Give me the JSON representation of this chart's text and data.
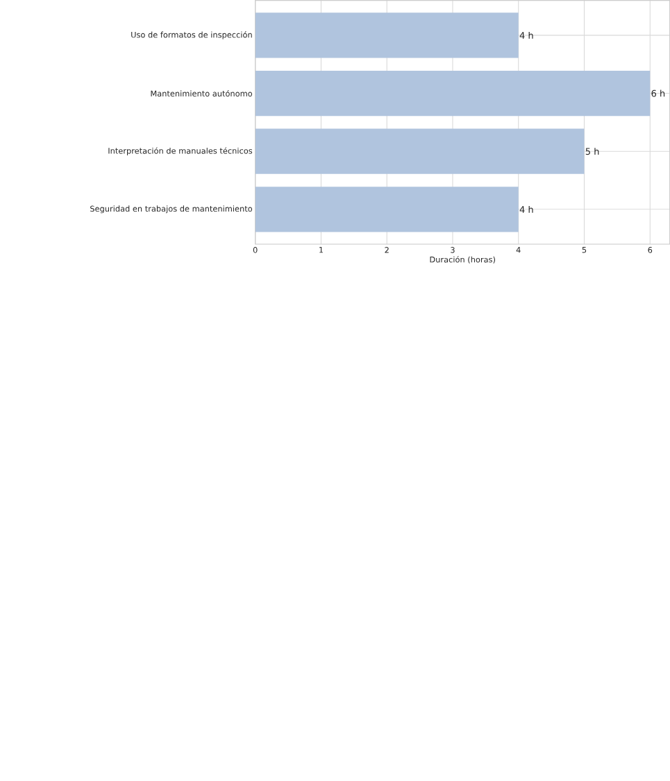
{
  "chart_data": {
    "type": "bar",
    "orientation": "horizontal",
    "xlabel": "Duración (horas)",
    "categories": [
      "Uso de formatos de inspección",
      "Mantenimiento autónomo",
      "Interpretación de manuales técnicos",
      "Seguridad en trabajos de mantenimiento"
    ],
    "values": [
      4,
      6,
      5,
      4
    ],
    "value_labels": [
      "4 h",
      "6 h",
      "5 h",
      "4 h"
    ],
    "color": "#b0c4de",
    "xlim": [
      0,
      6.3
    ],
    "xticks": [
      0,
      1,
      2,
      3,
      4,
      5,
      6
    ],
    "grid": true
  }
}
